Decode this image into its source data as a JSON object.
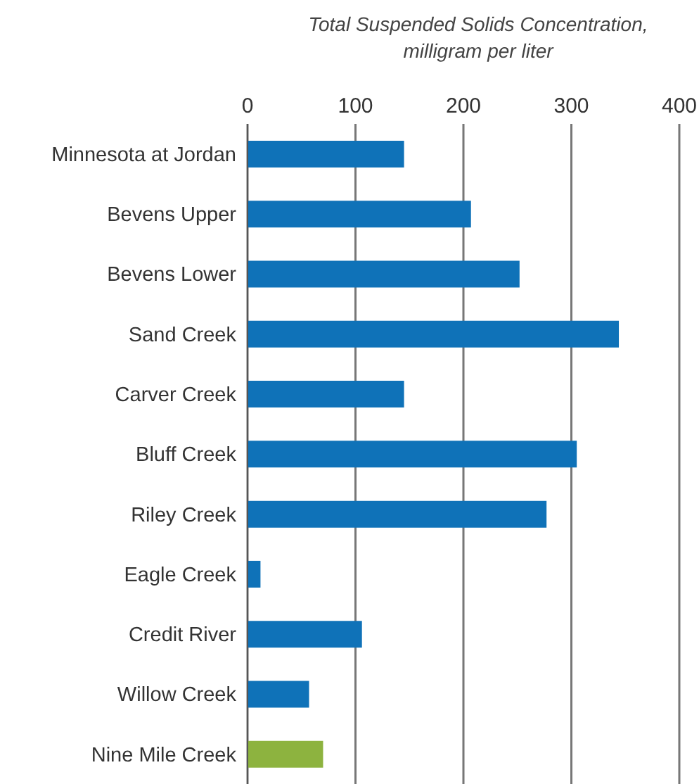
{
  "chart_data": {
    "type": "bar",
    "orientation": "horizontal",
    "xlabel": "Total Suspended Solids Concentration, milligram per liter",
    "categories": [
      "Minnesota at Jordan",
      "Bevens Upper",
      "Bevens Lower",
      "Sand Creek",
      "Carver Creek",
      "Bluff Creek",
      "Riley Creek",
      "Eagle Creek",
      "Credit River",
      "Willow Creek",
      "Nine Mile Creek"
    ],
    "values": [
      145,
      207,
      252,
      344,
      145,
      305,
      277,
      12,
      106,
      57,
      70
    ],
    "colors": [
      "#0f72b8",
      "#0f72b8",
      "#0f72b8",
      "#0f72b8",
      "#0f72b8",
      "#0f72b8",
      "#0f72b8",
      "#0f72b8",
      "#0f72b8",
      "#0f72b8",
      "#8db33f"
    ],
    "xlim": [
      0,
      400
    ],
    "xticks": [
      0,
      100,
      200,
      300,
      400
    ],
    "grid": "x"
  }
}
